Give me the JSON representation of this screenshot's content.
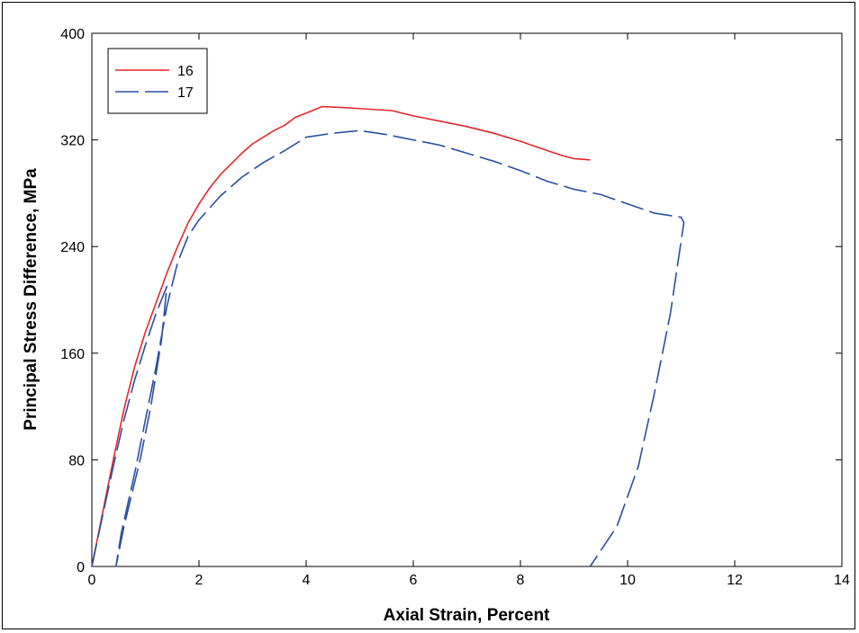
{
  "chart_data": {
    "type": "line",
    "xlabel": "Axial Strain, Percent",
    "ylabel": "Principal Stress Difference, MPa",
    "xlim": [
      0,
      14
    ],
    "ylim": [
      0,
      400
    ],
    "xticks": [
      "0",
      "2",
      "4",
      "6",
      "8",
      "10",
      "12",
      "14"
    ],
    "yticks": [
      "0",
      "80",
      "160",
      "240",
      "320",
      "400"
    ],
    "legend_position": "top-left",
    "grid": false,
    "series": [
      {
        "name": "16",
        "color": "#e8262a",
        "style": "solid",
        "points": [
          [
            0.0,
            0
          ],
          [
            0.2,
            40
          ],
          [
            0.4,
            80
          ],
          [
            0.6,
            118
          ],
          [
            0.8,
            150
          ],
          [
            1.0,
            176
          ],
          [
            1.2,
            198
          ],
          [
            1.4,
            220
          ],
          [
            1.6,
            240
          ],
          [
            1.8,
            258
          ],
          [
            2.0,
            272
          ],
          [
            2.2,
            284
          ],
          [
            2.4,
            294
          ],
          [
            2.6,
            302
          ],
          [
            2.8,
            310
          ],
          [
            3.0,
            317
          ],
          [
            3.2,
            322
          ],
          [
            3.4,
            327
          ],
          [
            3.6,
            331
          ],
          [
            3.8,
            337
          ],
          [
            4.0,
            340
          ],
          [
            4.3,
            345
          ],
          [
            4.8,
            344
          ],
          [
            5.2,
            343
          ],
          [
            5.6,
            342
          ],
          [
            6.0,
            338
          ],
          [
            6.5,
            334
          ],
          [
            7.0,
            330
          ],
          [
            7.5,
            325
          ],
          [
            8.0,
            319
          ],
          [
            8.5,
            312
          ],
          [
            8.8,
            308
          ],
          [
            9.0,
            306
          ],
          [
            9.3,
            305
          ]
        ]
      },
      {
        "name": "17",
        "color": "#2a4fa0",
        "style": "dashed",
        "points": [
          [
            0.0,
            0
          ],
          [
            0.2,
            38
          ],
          [
            0.4,
            75
          ],
          [
            0.6,
            110
          ],
          [
            0.8,
            140
          ],
          [
            1.0,
            166
          ],
          [
            1.2,
            190
          ],
          [
            1.4,
            210
          ],
          [
            1.3,
            170
          ],
          [
            1.1,
            120
          ],
          [
            0.9,
            80
          ],
          [
            0.6,
            30
          ],
          [
            0.45,
            0
          ],
          [
            0.55,
            25
          ],
          [
            0.8,
            70
          ],
          [
            1.0,
            110
          ],
          [
            1.2,
            150
          ],
          [
            1.4,
            195
          ],
          [
            1.6,
            228
          ],
          [
            1.8,
            248
          ],
          [
            2.0,
            260
          ],
          [
            2.4,
            278
          ],
          [
            2.8,
            292
          ],
          [
            3.2,
            303
          ],
          [
            3.6,
            312
          ],
          [
            4.0,
            322
          ],
          [
            4.5,
            325
          ],
          [
            5.0,
            327
          ],
          [
            5.5,
            324
          ],
          [
            6.0,
            320
          ],
          [
            6.5,
            316
          ],
          [
            7.0,
            310
          ],
          [
            7.5,
            304
          ],
          [
            8.0,
            297
          ],
          [
            8.5,
            289
          ],
          [
            9.0,
            283
          ],
          [
            9.5,
            279
          ],
          [
            10.0,
            272
          ],
          [
            10.5,
            265
          ],
          [
            11.0,
            262
          ],
          [
            11.05,
            258
          ],
          [
            10.8,
            190
          ],
          [
            10.5,
            130
          ],
          [
            10.2,
            75
          ],
          [
            9.8,
            30
          ],
          [
            9.3,
            0
          ]
        ]
      }
    ]
  }
}
